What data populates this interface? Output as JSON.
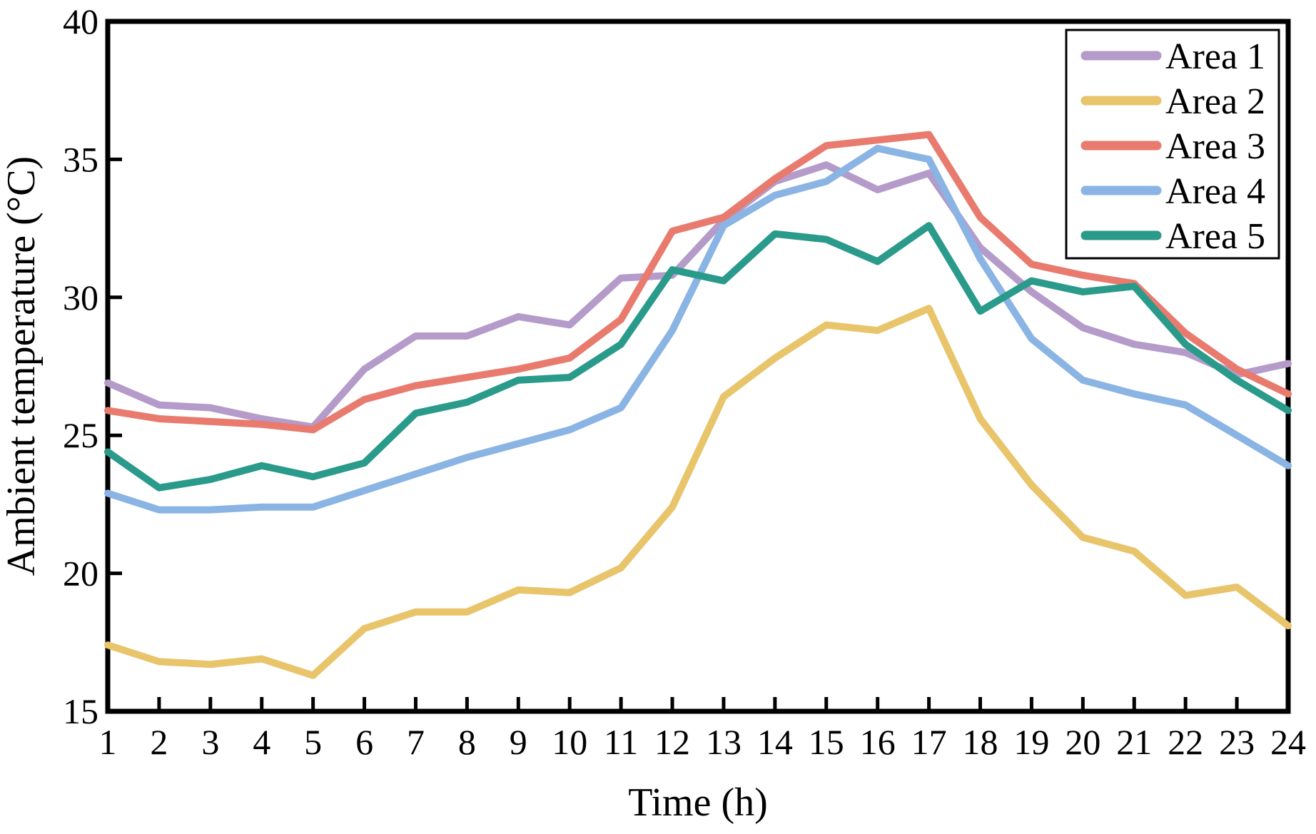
{
  "figure": {
    "x_axis_title": "Time (h)",
    "y_axis_title": "Ambient temperature (°C)"
  },
  "chart_data": {
    "type": "line",
    "xlabel": "Time (h)",
    "ylabel": "Ambient temperature (°C)",
    "xlim": [
      1,
      24
    ],
    "ylim": [
      15,
      40
    ],
    "xticks": [
      1,
      2,
      3,
      4,
      5,
      6,
      7,
      8,
      9,
      10,
      11,
      12,
      13,
      14,
      15,
      16,
      17,
      18,
      19,
      20,
      21,
      22,
      23,
      24
    ],
    "yticks": [
      15,
      20,
      25,
      30,
      35,
      40
    ],
    "grid": false,
    "legend_position": "upper right",
    "frame_color": "#000000",
    "x": [
      1,
      2,
      3,
      4,
      5,
      6,
      7,
      8,
      9,
      10,
      11,
      12,
      13,
      14,
      15,
      16,
      17,
      18,
      19,
      20,
      21,
      22,
      23,
      24
    ],
    "series": [
      {
        "name": "Area 1",
        "color": "#b49bc9",
        "values": [
          26.9,
          26.1,
          26.0,
          25.6,
          25.3,
          27.4,
          28.6,
          28.6,
          29.3,
          29.0,
          30.7,
          30.8,
          32.8,
          34.2,
          34.8,
          33.9,
          34.5,
          31.8,
          30.2,
          28.9,
          28.3,
          28.0,
          27.2,
          27.6
        ]
      },
      {
        "name": "Area 2",
        "color": "#e8c46a",
        "values": [
          17.4,
          16.8,
          16.7,
          16.9,
          16.3,
          18.0,
          18.6,
          18.6,
          19.4,
          19.3,
          20.2,
          22.4,
          26.4,
          27.8,
          29.0,
          28.8,
          29.6,
          25.6,
          23.2,
          21.3,
          20.8,
          19.2,
          19.5,
          18.1
        ]
      },
      {
        "name": "Area 3",
        "color": "#e87a6e",
        "values": [
          25.9,
          25.6,
          25.5,
          25.4,
          25.2,
          26.3,
          26.8,
          27.1,
          27.4,
          27.8,
          29.2,
          32.4,
          32.9,
          34.3,
          35.5,
          35.7,
          35.9,
          32.9,
          31.2,
          30.8,
          30.5,
          28.7,
          27.4,
          26.5
        ]
      },
      {
        "name": "Area 4",
        "color": "#8ab4e4",
        "values": [
          22.9,
          22.3,
          22.3,
          22.4,
          22.4,
          23.0,
          23.6,
          24.2,
          24.7,
          25.2,
          26.0,
          28.8,
          32.6,
          33.7,
          34.2,
          35.4,
          35.0,
          31.4,
          28.5,
          27.0,
          26.5,
          26.1,
          25.0,
          23.9
        ]
      },
      {
        "name": "Area 5",
        "color": "#2a9a8b",
        "values": [
          24.4,
          23.1,
          23.4,
          23.9,
          23.5,
          24.0,
          25.8,
          26.2,
          27.0,
          27.1,
          28.3,
          31.0,
          30.6,
          32.3,
          32.1,
          31.3,
          32.6,
          29.5,
          30.6,
          30.2,
          30.4,
          28.3,
          27.0,
          25.9
        ]
      }
    ]
  }
}
